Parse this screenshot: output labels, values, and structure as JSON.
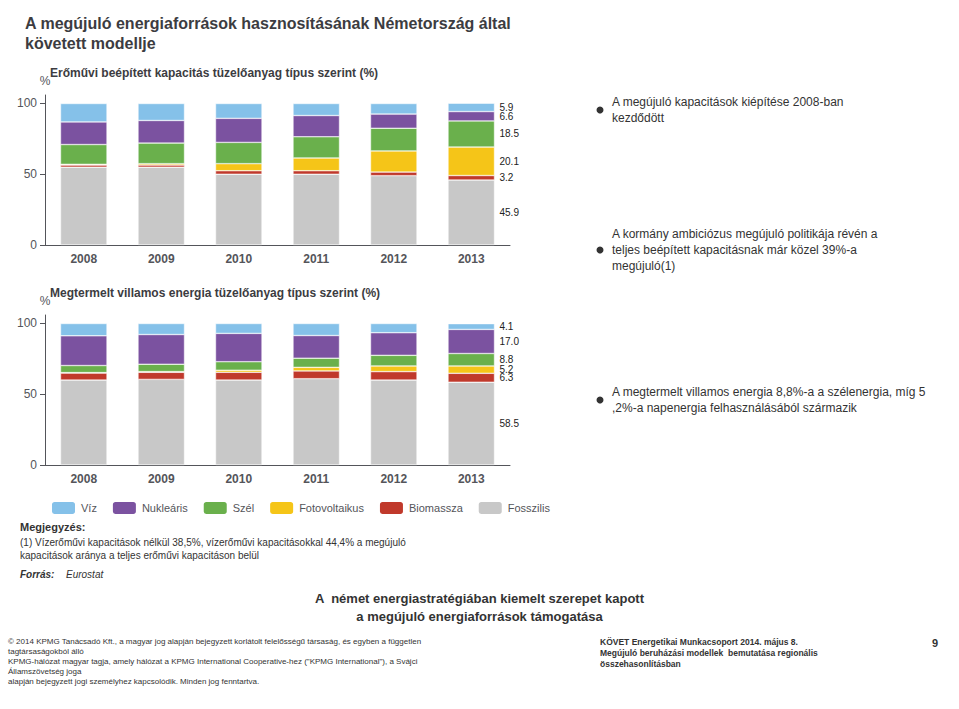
{
  "title": "A megújuló energiaforrások hasznosításának Németország által\nkövetett modellje",
  "legend": "bottom",
  "annotations": [
    "A megújuló kapacitások kiépítése 2008-ban kezdődött",
    "A kormány ambiciózus megújuló politikája révén a teljes beépített kapacitásnak már közel 39%-a megújuló(1)",
    "A megtermelt villamos energia 8,8%-a a szélenergia, míg 5,2%-a napenergia felhasználásából származik",
    "Megjegyzés:",
    "(1) Vízerőművi kapacitások nélkül 38,5%, vízerőművi kapacitásokkal 44,4% a megújuló kapacitások aránya a teljes erőművi kapacitáson belül",
    "Forrás:",
    "Eurostat",
    "A  német energiastratégiában kiemelt szerepet kapott",
    "a megújuló energiaforrások támogatása",
    "© 2014 KPMG Tanácsadó Kft., a magyar jog alapján bejegyzett korlátolt felelősségű társaság, és egyben a független tagtársaságokból álló\nKPMG-hálózat magyar tagja, amely hálózat a KPMG International Cooperative-hez (\"KPMG International\"), a Svájci Államszövetség joga\nalapján bejegyzett jogi személyhez kapcsolódik. Minden jog fenntartva.",
    "KÖVET Energetikai Munkacsoport 2014. május 8.\nMegújuló beruházási modellek  bemutatása regionális\nösszehasonlításban",
    "9"
  ],
  "chart_data": [
    {
      "type": "bar",
      "title": "Erőművi beépített kapacitás tüzelőanyag típus szerint (%)",
      "ylabel": "%",
      "stacked": true,
      "grid": false,
      "data_labels": true,
      "categories": [
        "2008",
        "2009",
        "2010",
        "2011",
        "2012",
        "2013"
      ],
      "ylim": [
        0,
        106
      ],
      "yticks": [
        0,
        50,
        100
      ],
      "series": [
        {
          "name": "Fosszilis",
          "color": "#c8c8c8",
          "values": [
            55,
            55,
            50,
            50,
            49,
            45.9
          ],
          "value_labels": [
            null,
            null,
            null,
            null,
            null,
            "45.9"
          ]
        },
        {
          "name": "Biomassza",
          "color": "#c0392b",
          "values": [
            1.5,
            1.5,
            2.5,
            2.5,
            2.5,
            3.2
          ],
          "value_labels": [
            null,
            null,
            null,
            null,
            null,
            "3.2"
          ]
        },
        {
          "name": "Fotovoltaikus",
          "color": "#f5c518",
          "values": [
            0.5,
            1.0,
            5.0,
            9.0,
            15.0,
            20.1
          ],
          "value_labels": [
            null,
            null,
            null,
            null,
            null,
            "20.1"
          ]
        },
        {
          "name": "Szél",
          "color": "#6ab04c",
          "values": [
            14,
            14.5,
            15,
            15,
            16,
            18.5
          ],
          "value_labels": [
            null,
            null,
            null,
            null,
            null,
            "18.5"
          ]
        },
        {
          "name": "Nukleáris",
          "color": "#7b52a0",
          "values": [
            16,
            16,
            17,
            15,
            10,
            6.6
          ],
          "value_labels": [
            null,
            null,
            null,
            null,
            null,
            "6.6"
          ]
        },
        {
          "name": "Víz",
          "color": "#85c1e9",
          "values": [
            13,
            12,
            10.5,
            8.5,
            7.5,
            5.9
          ],
          "value_labels": [
            null,
            null,
            null,
            null,
            null,
            "5.9"
          ]
        }
      ]
    },
    {
      "type": "bar",
      "title": "Megtermelt villamos energia tüzelőanyag típus szerint (%)",
      "ylabel": "%",
      "stacked": true,
      "grid": false,
      "data_labels": true,
      "categories": [
        "2008",
        "2009",
        "2010",
        "2011",
        "2012",
        "2013"
      ],
      "ylim": [
        0,
        106
      ],
      "yticks": [
        0,
        50,
        100
      ],
      "series": [
        {
          "name": "Fosszilis",
          "color": "#c8c8c8",
          "values": [
            60,
            60.5,
            60,
            61,
            60,
            58.5
          ],
          "value_labels": [
            null,
            null,
            null,
            null,
            null,
            "58.5"
          ]
        },
        {
          "name": "Biomassza",
          "color": "#c0392b",
          "values": [
            5,
            5,
            5.5,
            5.5,
            6,
            6.3
          ],
          "value_labels": [
            null,
            null,
            null,
            null,
            null,
            "6.3"
          ]
        },
        {
          "name": "Fotovoltaikus",
          "color": "#f5c518",
          "values": [
            0.3,
            0.5,
            1.5,
            2.5,
            4,
            5.2
          ],
          "value_labels": [
            null,
            null,
            null,
            null,
            null,
            "5.2"
          ]
        },
        {
          "name": "Szél",
          "color": "#6ab04c",
          "values": [
            5,
            5.2,
            6,
            6.5,
            7.5,
            8.8
          ],
          "value_labels": [
            null,
            null,
            null,
            null,
            null,
            "8.8"
          ]
        },
        {
          "name": "Nukleáris",
          "color": "#7b52a0",
          "values": [
            21,
            21,
            20,
            16,
            16,
            17
          ],
          "value_labels": [
            null,
            null,
            null,
            null,
            null,
            "17.0"
          ]
        },
        {
          "name": "Víz",
          "color": "#85c1e9",
          "values": [
            8.7,
            7.8,
            7,
            8.5,
            6.5,
            4.1
          ],
          "value_labels": [
            null,
            null,
            null,
            null,
            null,
            "4.1"
          ]
        }
      ]
    }
  ]
}
